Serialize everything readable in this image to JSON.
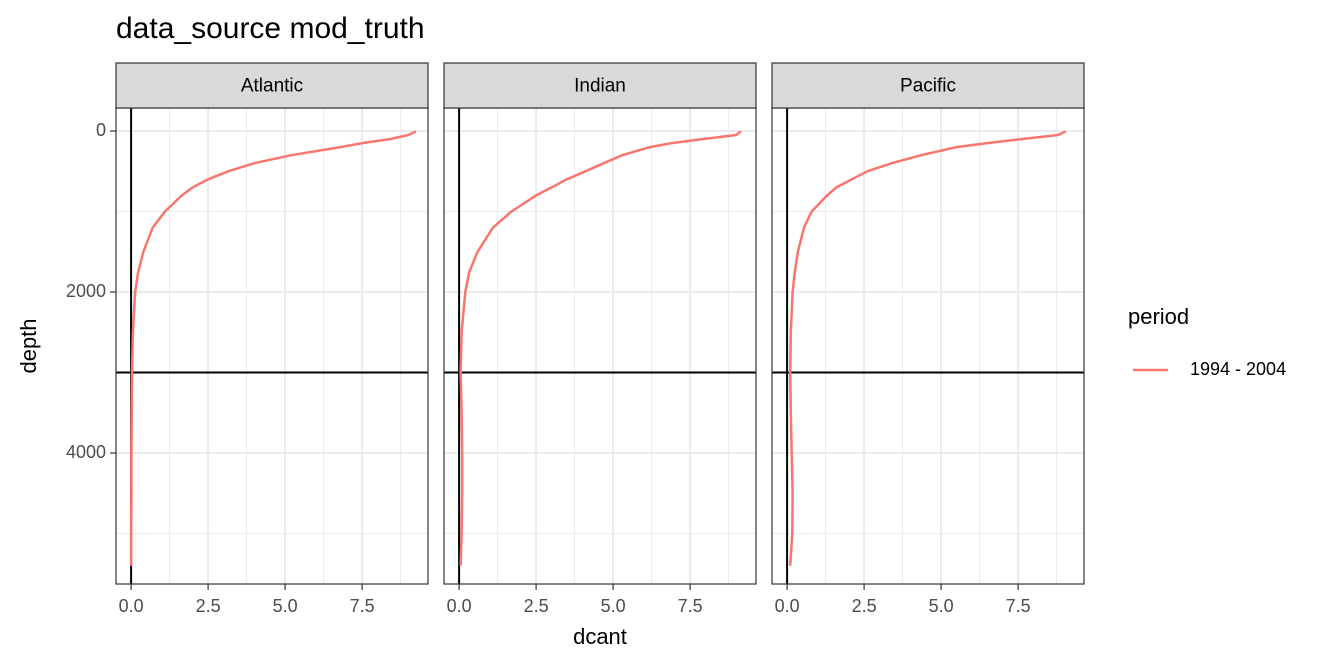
{
  "chart_data": {
    "type": "line",
    "title": "data_source mod_truth",
    "x_label": "dcant",
    "y_label": "depth",
    "legend_title": "period",
    "series": [
      {
        "name": "1994 - 2004",
        "color": "#F8766D"
      }
    ],
    "xlim": [
      -0.49,
      9.64
    ],
    "ylim": [
      5627,
      -286
    ],
    "xticks": [
      {
        "value": 0,
        "label": "0.0"
      },
      2.5,
      {
        "value": 5,
        "label": "5.0"
      },
      7.5
    ],
    "yticks": [
      0,
      2000,
      4000
    ],
    "xminor_ticks": [
      1.25,
      3.75,
      6.25,
      8.75
    ],
    "yminor_ticks": [
      1000,
      3000,
      5000
    ],
    "grid": true,
    "hline": 3000,
    "vline": 0,
    "legend_position": "right",
    "depth": [
      5,
      50,
      100,
      150,
      200,
      300,
      400,
      500,
      600,
      700,
      800,
      1000,
      1200,
      1500,
      1750,
      2000,
      2500,
      3000,
      3500,
      4000,
      4500,
      5000,
      5400
    ],
    "panels": [
      {
        "label": "Atlantic",
        "values": [
          9.25,
          9.0,
          8.4,
          7.5,
          6.8,
          5.2,
          4.0,
          3.15,
          2.5,
          2.0,
          1.65,
          1.1,
          0.7,
          0.4,
          0.23,
          0.13,
          0.06,
          0.03,
          0.02,
          0.01,
          0.01,
          0,
          0
        ]
      },
      {
        "label": "Indian",
        "values": [
          9.15,
          9.0,
          7.9,
          6.9,
          6.2,
          5.3,
          4.7,
          4.1,
          3.5,
          3.0,
          2.5,
          1.7,
          1.1,
          0.6,
          0.33,
          0.2,
          0.08,
          0.05,
          0.08,
          0.1,
          0.1,
          0.08,
          0.05
        ]
      },
      {
        "label": "Pacific",
        "values": [
          9.05,
          8.8,
          7.6,
          6.5,
          5.5,
          4.35,
          3.4,
          2.6,
          2.1,
          1.6,
          1.3,
          0.8,
          0.55,
          0.35,
          0.25,
          0.18,
          0.12,
          0.1,
          0.12,
          0.15,
          0.18,
          0.17,
          0.1
        ]
      }
    ]
  }
}
